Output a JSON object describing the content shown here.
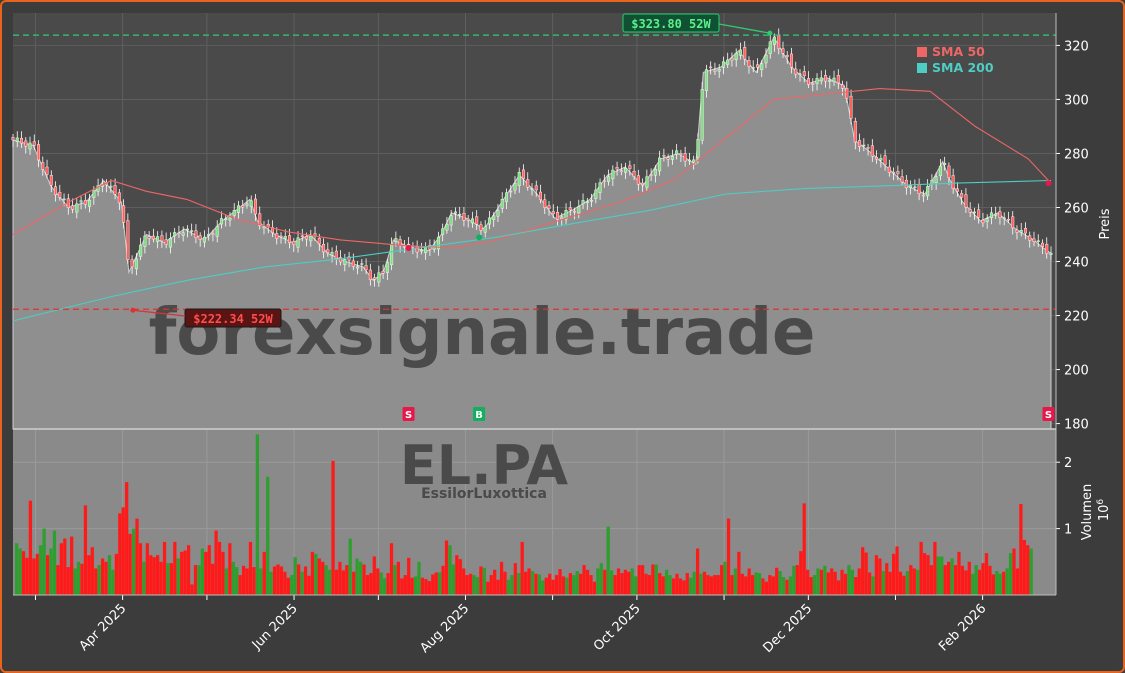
{
  "chart_data": [
    {
      "type": "candlestick",
      "ticker": "EL.PA",
      "company": "EssilorLuxottica",
      "watermark": "forexsignale.trade",
      "ylabel": "Preis",
      "ylim": [
        178,
        332
      ],
      "yticks": [
        180,
        200,
        220,
        240,
        260,
        280,
        300,
        320
      ],
      "x_start": "2025-02-21",
      "x_end": "2026-02-20",
      "xticks": [
        {
          "date": "2025-04-01",
          "label": "Apr 2025"
        },
        {
          "date": "2025-06-01",
          "label": "Jun 2025"
        },
        {
          "date": "2025-08-01",
          "label": "Aug 2025"
        },
        {
          "date": "2025-10-01",
          "label": "Oct 2025"
        },
        {
          "date": "2025-12-01",
          "label": "Dec 2025"
        },
        {
          "date": "2026-02-01",
          "label": "Feb 2026"
        }
      ],
      "close_path": [
        [
          "2025-02-21",
          285
        ],
        [
          "2025-03-01",
          283
        ],
        [
          "2025-03-08",
          268
        ],
        [
          "2025-03-15",
          260
        ],
        [
          "2025-03-22",
          262
        ],
        [
          "2025-03-29",
          270
        ],
        [
          "2025-04-05",
          262
        ],
        [
          "2025-04-08",
          236
        ],
        [
          "2025-04-10",
          240
        ],
        [
          "2025-04-15",
          250
        ],
        [
          "2025-04-22",
          247
        ],
        [
          "2025-04-30",
          252
        ],
        [
          "2025-05-08",
          248
        ],
        [
          "2025-05-15",
          255
        ],
        [
          "2025-05-22",
          260
        ],
        [
          "2025-05-26",
          263
        ],
        [
          "2025-05-29",
          255
        ],
        [
          "2025-06-05",
          250
        ],
        [
          "2025-06-12",
          247
        ],
        [
          "2025-06-19",
          250
        ],
        [
          "2025-06-26",
          243
        ],
        [
          "2025-07-03",
          240
        ],
        [
          "2025-07-10",
          238
        ],
        [
          "2025-07-14",
          233
        ],
        [
          "2025-07-18",
          236
        ],
        [
          "2025-07-22",
          248
        ],
        [
          "2025-07-29",
          245
        ],
        [
          "2025-08-05",
          244
        ],
        [
          "2025-08-10",
          250
        ],
        [
          "2025-08-14",
          258
        ],
        [
          "2025-08-20",
          256
        ],
        [
          "2025-08-27",
          252
        ],
        [
          "2025-09-03",
          262
        ],
        [
          "2025-09-10",
          272
        ],
        [
          "2025-09-17",
          265
        ],
        [
          "2025-09-24",
          256
        ],
        [
          "2025-10-01",
          259
        ],
        [
          "2025-10-08",
          263
        ],
        [
          "2025-10-15",
          272
        ],
        [
          "2025-10-22",
          275
        ],
        [
          "2025-10-29",
          268
        ],
        [
          "2025-11-05",
          278
        ],
        [
          "2025-11-12",
          280
        ],
        [
          "2025-11-19",
          276
        ],
        [
          "2025-11-22",
          310
        ],
        [
          "2025-11-29",
          312
        ],
        [
          "2025-12-06",
          318
        ],
        [
          "2025-12-13",
          310
        ],
        [
          "2025-12-20",
          323
        ],
        [
          "2025-12-27",
          312
        ],
        [
          "2026-01-03",
          306
        ],
        [
          "2026-01-10",
          308
        ],
        [
          "2026-01-17",
          305
        ],
        [
          "2026-01-21",
          285
        ],
        [
          "2026-01-28",
          280
        ],
        [
          "2026-02-04",
          274
        ],
        [
          "2026-02-11",
          268
        ],
        [
          "2026-02-18",
          265
        ],
        [
          "2026-02-25",
          277
        ],
        [
          "2026-02-28",
          270
        ],
        [
          "2026-03-05",
          262
        ],
        [
          "2026-03-12",
          255
        ],
        [
          "2026-03-19",
          258
        ],
        [
          "2026-03-26",
          252
        ],
        [
          "2026-04-02",
          248
        ],
        [
          "2026-04-06",
          245
        ],
        [
          "2026-04-09",
          243
        ]
      ],
      "sma50": [
        [
          "2025-02-21",
          250
        ],
        [
          "2025-03-15",
          262
        ],
        [
          "2025-04-01",
          270
        ],
        [
          "2025-04-15",
          266
        ],
        [
          "2025-05-01",
          263
        ],
        [
          "2025-05-20",
          256
        ],
        [
          "2025-06-10",
          251
        ],
        [
          "2025-07-01",
          248
        ],
        [
          "2025-07-25",
          246
        ],
        [
          "2025-08-15",
          245
        ],
        [
          "2025-09-01",
          248
        ],
        [
          "2025-09-25",
          255
        ],
        [
          "2025-10-20",
          262
        ],
        [
          "2025-11-10",
          270
        ],
        [
          "2025-11-30",
          285
        ],
        [
          "2025-12-20",
          300
        ],
        [
          "2026-01-10",
          302
        ],
        [
          "2026-01-31",
          304
        ],
        [
          "2026-02-20",
          303
        ],
        [
          "2026-03-10",
          290
        ],
        [
          "2026-03-31",
          278
        ],
        [
          "2026-04-09",
          269
        ]
      ],
      "sma200": [
        [
          "2025-02-21",
          218
        ],
        [
          "2025-04-01",
          227
        ],
        [
          "2025-05-01",
          233
        ],
        [
          "2025-06-01",
          238
        ],
        [
          "2025-07-01",
          241
        ],
        [
          "2025-08-01",
          245
        ],
        [
          "2025-09-01",
          249
        ],
        [
          "2025-10-01",
          254
        ],
        [
          "2025-11-01",
          259
        ],
        [
          "2025-12-01",
          265
        ],
        [
          "2026-01-01",
          267
        ],
        [
          "2026-02-01",
          268
        ],
        [
          "2026-03-01",
          269
        ],
        [
          "2026-04-09",
          270
        ]
      ],
      "high_52w": {
        "value": 323.8,
        "label": "$323.80 52W",
        "date": "2025-12-20"
      },
      "low_52w": {
        "value": 222.34,
        "label": "$222.34 52W",
        "date": "2025-04-08"
      },
      "signals": [
        {
          "date": "2025-07-28",
          "type": "S"
        },
        {
          "date": "2025-08-25",
          "type": "B"
        },
        {
          "date": "2026-04-08",
          "type": "S"
        }
      ],
      "signal_markers": [
        {
          "date": "2025-07-28",
          "value": 245
        },
        {
          "date": "2025-08-25",
          "value": 249
        },
        {
          "date": "2026-04-08",
          "value": 269
        }
      ],
      "legend": [
        {
          "name": "SMA 50",
          "color": "#ee6666"
        },
        {
          "name": "SMA 200",
          "color": "#4ecdc4"
        }
      ],
      "legend_position": "top-right",
      "colors": {
        "up": "#2e9e2e",
        "down": "#ff1a1a",
        "area": "#8f8f8f",
        "high_line": "#2ecc71",
        "low_line": "#e03030",
        "sell": "#e8174a",
        "buy": "#10b060"
      }
    },
    {
      "type": "bar",
      "ylabel": "Volumen",
      "yunit_exp": "6",
      "ylim": [
        0,
        2.5
      ],
      "yticks": [
        1,
        2
      ],
      "bars": [
        0.78,
        0.7,
        0.66,
        0.56,
        1.42,
        0.55,
        0.62,
        0.75,
        1.0,
        0.6,
        0.7,
        0.97,
        0.45,
        0.78,
        0.85,
        0.42,
        0.88,
        0.4,
        0.5,
        0.47,
        1.35,
        0.6,
        0.72,
        0.4,
        0.45,
        0.55,
        0.5,
        0.6,
        0.38,
        0.62,
        1.23,
        1.32,
        1.7,
        0.92,
        1.0,
        1.15,
        0.78,
        0.5,
        0.78,
        0.6,
        0.57,
        0.6,
        0.5,
        0.8,
        0.48,
        0.48,
        0.8,
        0.55,
        0.65,
        0.67,
        0.75,
        0.16,
        0.45,
        0.45,
        0.7,
        0.65,
        0.75,
        0.47,
        0.97,
        0.8,
        0.65,
        0.4,
        0.78,
        0.5,
        0.42,
        0.3,
        0.44,
        0.4,
        0.8,
        0.42,
        2.42,
        0.4,
        0.65,
        1.78,
        0.35,
        0.43,
        0.46,
        0.43,
        0.35,
        0.26,
        0.3,
        0.57,
        0.46,
        0.35,
        0.43,
        0.29,
        0.65,
        0.62,
        0.55,
        0.5,
        0.45,
        0.38,
        2.02,
        0.38,
        0.5,
        0.37,
        0.45,
        0.85,
        0.35,
        0.55,
        0.5,
        0.46,
        0.3,
        0.33,
        0.58,
        0.4,
        0.34,
        0.25,
        0.33,
        0.78,
        0.45,
        0.5,
        0.25,
        0.3,
        0.56,
        0.26,
        0.28,
        0.5,
        0.26,
        0.24,
        0.21,
        0.31,
        0.34,
        0.34,
        0.44,
        0.82,
        0.75,
        0.46,
        0.6,
        0.54,
        0.4,
        0.3,
        0.32,
        0.3,
        0.27,
        0.43,
        0.41,
        0.2,
        0.3,
        0.38,
        0.23,
        0.5,
        0.35,
        0.23,
        0.3,
        0.48,
        0.33,
        0.8,
        0.35,
        0.4,
        0.36,
        0.32,
        0.31,
        0.22,
        0.26,
        0.32,
        0.23,
        0.3,
        0.39,
        0.28,
        0.26,
        0.33,
        0.3,
        0.36,
        0.32,
        0.45,
        0.38,
        0.3,
        0.2,
        0.4,
        0.48,
        0.38,
        1.03,
        0.37,
        0.3,
        0.4,
        0.33,
        0.38,
        0.35,
        0.4,
        0.28,
        0.45,
        0.45,
        0.32,
        0.3,
        0.46,
        0.46,
        0.33,
        0.28,
        0.38,
        0.3,
        0.25,
        0.32,
        0.25,
        0.22,
        0.33,
        0.26,
        0.35,
        0.7,
        0.32,
        0.35,
        0.3,
        0.28,
        0.3,
        0.3,
        0.45,
        0.5,
        1.15,
        0.3,
        0.4,
        0.65,
        0.32,
        0.28,
        0.4,
        0.3,
        0.34,
        0.33,
        0.25,
        0.2,
        0.3,
        0.28,
        0.41,
        0.36,
        0.27,
        0.23,
        0.28,
        0.44,
        0.45,
        0.66,
        1.38,
        0.38,
        0.27,
        0.3,
        0.4,
        0.38,
        0.44,
        0.34,
        0.4,
        0.35,
        0.22,
        0.38,
        0.32,
        0.45,
        0.38,
        0.27,
        0.4,
        0.72,
        0.64,
        0.34,
        0.28,
        0.6,
        0.55,
        0.36,
        0.48,
        0.35,
        0.62,
        0.73,
        0.35,
        0.29,
        0.36,
        0.45,
        0.4,
        0.38,
        0.8,
        0.63,
        0.6,
        0.45,
        0.8,
        0.58,
        0.58,
        0.45,
        0.5,
        0.55,
        0.45,
        0.65,
        0.44,
        0.37,
        0.5,
        0.32,
        0.45,
        0.38,
        0.48,
        0.63,
        0.44,
        0.31,
        0.36,
        0.32,
        0.35,
        0.4,
        0.63,
        0.7,
        0.4,
        1.37,
        0.83,
        0.75,
        0.7
      ],
      "colors": {
        "up": "#2e9e2e",
        "down": "#ff1a1a"
      }
    }
  ]
}
